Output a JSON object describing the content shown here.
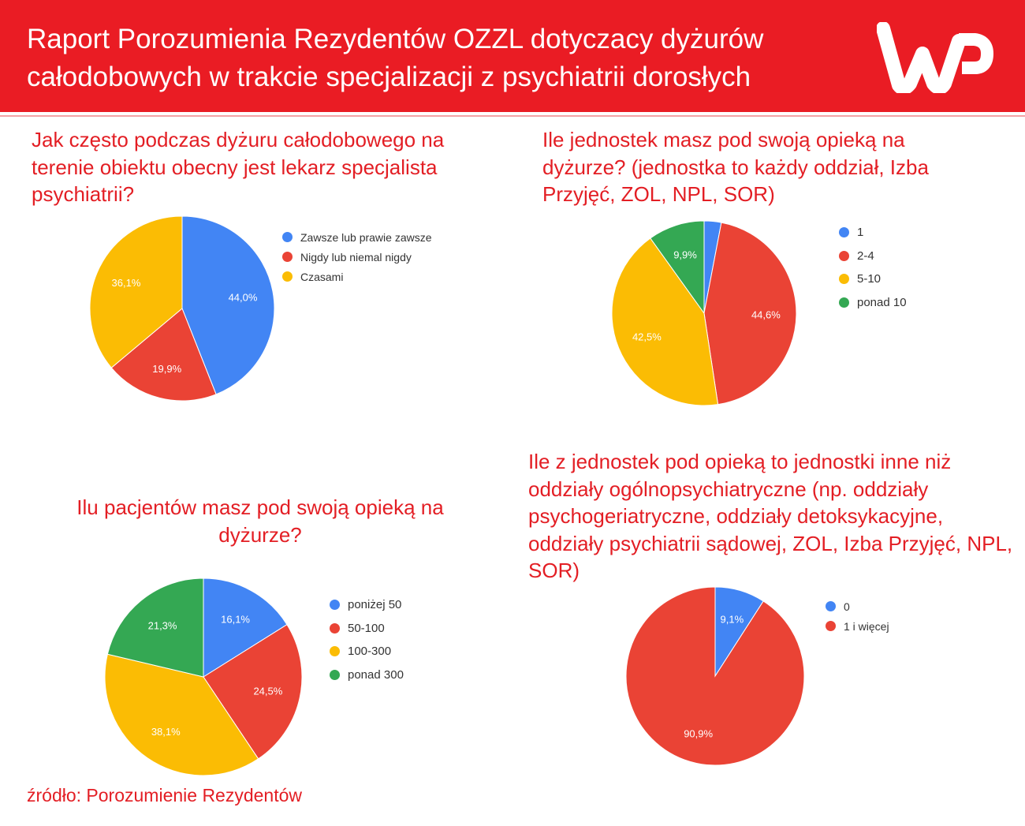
{
  "header": {
    "title": "Raport Porozumienia Rezydentów OZZL dotyczacy dyżurów całodobowych w trakcie specjalizacji z psychiatrii dorosłych",
    "logo_text": "WP"
  },
  "colors": {
    "blue": "#4285f4",
    "red": "#ea4335",
    "yellow": "#fbbc04",
    "green": "#34a853",
    "brand": "#ea1c24"
  },
  "chart_data": [
    {
      "type": "pie",
      "title": "Jak często podczas dyżuru całodobowego na terenie obiektu obecny jest lekarz specjalista psychiatrii?",
      "title_extra": "",
      "legend_position": "right",
      "categories": [
        "Zawsze lub prawie zawsze",
        "Nigdy lub niemal nigdy",
        "Czasami"
      ],
      "values": [
        44.0,
        19.9,
        36.1
      ],
      "labels": [
        "44,0%",
        "19,9%",
        "36,1%"
      ],
      "colors": [
        "#4285f4",
        "#ea4335",
        "#fbbc04"
      ]
    },
    {
      "type": "pie",
      "title": "Ile jednostek masz pod swoją opieką na dyżurze?",
      "title_extra": " (jednostka to każdy oddział, Izba Przyjęć, ZOL, NPL, SOR)",
      "legend_position": "right",
      "categories": [
        "1",
        "2-4",
        "5-10",
        "ponad 10"
      ],
      "values": [
        3.0,
        44.6,
        42.5,
        9.9
      ],
      "labels": [
        "",
        "44,6%",
        "42,5%",
        "9,9%"
      ],
      "colors": [
        "#4285f4",
        "#ea4335",
        "#fbbc04",
        "#34a853"
      ]
    },
    {
      "type": "pie",
      "title": "Ilu pacjentów masz pod swoją opieką na dyżurze?",
      "title_extra": "",
      "legend_position": "right",
      "categories": [
        "poniżej 50",
        "50-100",
        "100-300",
        "ponad 300"
      ],
      "values": [
        16.1,
        24.5,
        38.1,
        21.3
      ],
      "labels": [
        "16,1%",
        "24,5%",
        "38,1%",
        "21,3%"
      ],
      "colors": [
        "#4285f4",
        "#ea4335",
        "#fbbc04",
        "#34a853"
      ]
    },
    {
      "type": "pie",
      "title": "Ile z jednostek pod opieką to jednostki inne niż oddziały ogólnopsychiatryczne",
      "title_extra": " (np. oddziały psychogeriatryczne, oddziały detoksykacyjne, oddziały psychiatrii sądowej, ZOL, Izba Przyjęć, NPL, SOR)",
      "legend_position": "right",
      "categories": [
        "0",
        "1 i więcej"
      ],
      "values": [
        9.1,
        90.9
      ],
      "labels": [
        "9,1%",
        "90,9%"
      ],
      "colors": [
        "#4285f4",
        "#ea4335"
      ]
    }
  ],
  "footer": {
    "source": "źródło: Porozumienie Rezydentów"
  }
}
